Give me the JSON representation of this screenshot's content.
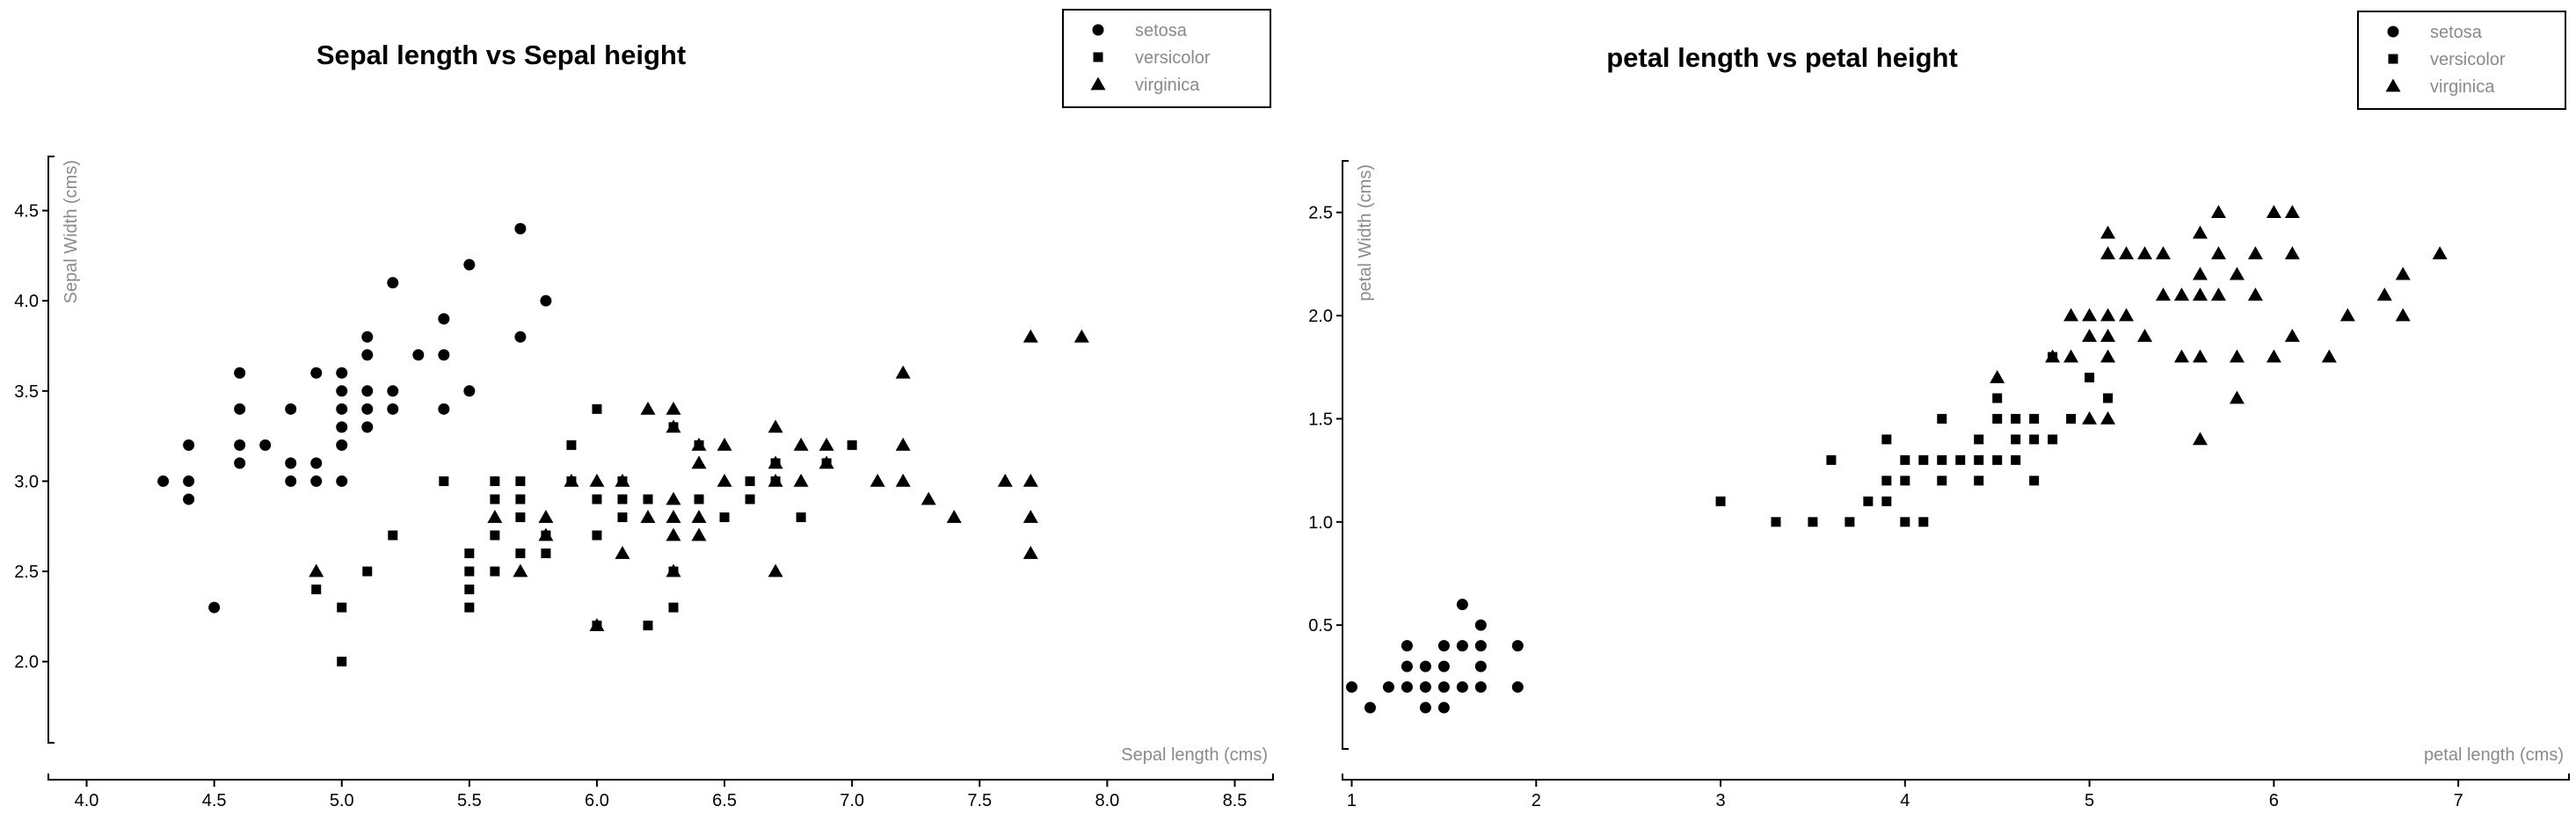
{
  "chart_data": [
    {
      "type": "scatter",
      "title": "Sepal length vs Sepal height",
      "xlabel": "Sepal length (cms)",
      "ylabel": "Sepal Width (cms)",
      "xlim": [
        3.85,
        8.65
      ],
      "ylim": [
        1.55,
        4.8
      ],
      "xticks": [
        4.0,
        4.5,
        5.0,
        5.5,
        6.0,
        6.5,
        7.0,
        7.5,
        8.0,
        8.5
      ],
      "yticks": [
        2.0,
        2.5,
        3.0,
        3.5,
        4.0,
        4.5
      ],
      "grid": false,
      "legend_position": "top-right",
      "series": [
        {
          "name": "setosa",
          "marker": "circle",
          "points": [
            [
              4.3,
              3.0
            ],
            [
              4.4,
              2.9
            ],
            [
              4.4,
              3.0
            ],
            [
              4.4,
              3.2
            ],
            [
              4.5,
              2.3
            ],
            [
              4.6,
              3.1
            ],
            [
              4.6,
              3.2
            ],
            [
              4.6,
              3.4
            ],
            [
              4.6,
              3.6
            ],
            [
              4.7,
              3.2
            ],
            [
              4.8,
              3.0
            ],
            [
              4.8,
              3.1
            ],
            [
              4.8,
              3.4
            ],
            [
              4.9,
              3.0
            ],
            [
              4.9,
              3.1
            ],
            [
              4.9,
              3.6
            ],
            [
              5.0,
              3.0
            ],
            [
              5.0,
              3.2
            ],
            [
              5.0,
              3.3
            ],
            [
              5.0,
              3.4
            ],
            [
              5.0,
              3.5
            ],
            [
              5.0,
              3.6
            ],
            [
              5.1,
              3.3
            ],
            [
              5.1,
              3.4
            ],
            [
              5.1,
              3.5
            ],
            [
              5.1,
              3.7
            ],
            [
              5.1,
              3.8
            ],
            [
              5.2,
              3.4
            ],
            [
              5.2,
              3.5
            ],
            [
              5.2,
              4.1
            ],
            [
              5.3,
              3.7
            ],
            [
              5.4,
              3.4
            ],
            [
              5.4,
              3.7
            ],
            [
              5.4,
              3.9
            ],
            [
              5.5,
              3.5
            ],
            [
              5.5,
              4.2
            ],
            [
              5.7,
              3.8
            ],
            [
              5.7,
              4.4
            ],
            [
              5.8,
              4.0
            ]
          ]
        },
        {
          "name": "versicolor",
          "marker": "square",
          "points": [
            [
              4.9,
              2.4
            ],
            [
              5.0,
              2.0
            ],
            [
              5.0,
              2.3
            ],
            [
              5.1,
              2.5
            ],
            [
              5.2,
              2.7
            ],
            [
              5.4,
              3.0
            ],
            [
              5.5,
              2.3
            ],
            [
              5.5,
              2.4
            ],
            [
              5.5,
              2.5
            ],
            [
              5.5,
              2.6
            ],
            [
              5.6,
              2.5
            ],
            [
              5.6,
              2.7
            ],
            [
              5.6,
              2.9
            ],
            [
              5.6,
              3.0
            ],
            [
              5.7,
              2.6
            ],
            [
              5.7,
              2.8
            ],
            [
              5.7,
              2.9
            ],
            [
              5.7,
              3.0
            ],
            [
              5.8,
              2.6
            ],
            [
              5.8,
              2.7
            ],
            [
              5.9,
              3.0
            ],
            [
              5.9,
              3.2
            ],
            [
              6.0,
              2.2
            ],
            [
              6.0,
              2.7
            ],
            [
              6.0,
              2.9
            ],
            [
              6.0,
              3.4
            ],
            [
              6.1,
              2.8
            ],
            [
              6.1,
              2.9
            ],
            [
              6.1,
              3.0
            ],
            [
              6.2,
              2.2
            ],
            [
              6.2,
              2.9
            ],
            [
              6.3,
              2.3
            ],
            [
              6.3,
              2.5
            ],
            [
              6.3,
              3.3
            ],
            [
              6.4,
              2.9
            ],
            [
              6.4,
              3.2
            ],
            [
              6.5,
              2.8
            ],
            [
              6.6,
              2.9
            ],
            [
              6.6,
              3.0
            ],
            [
              6.7,
              3.0
            ],
            [
              6.7,
              3.1
            ],
            [
              6.8,
              2.8
            ],
            [
              6.9,
              3.1
            ],
            [
              7.0,
              3.2
            ]
          ]
        },
        {
          "name": "virginica",
          "marker": "triangle",
          "points": [
            [
              4.9,
              2.5
            ],
            [
              5.6,
              2.8
            ],
            [
              5.7,
              2.5
            ],
            [
              5.8,
              2.7
            ],
            [
              5.8,
              2.8
            ],
            [
              5.9,
              3.0
            ],
            [
              6.0,
              2.2
            ],
            [
              6.0,
              3.0
            ],
            [
              6.1,
              2.6
            ],
            [
              6.1,
              3.0
            ],
            [
              6.2,
              2.8
            ],
            [
              6.2,
              3.4
            ],
            [
              6.3,
              2.5
            ],
            [
              6.3,
              2.7
            ],
            [
              6.3,
              2.8
            ],
            [
              6.3,
              2.9
            ],
            [
              6.3,
              3.3
            ],
            [
              6.3,
              3.4
            ],
            [
              6.4,
              2.7
            ],
            [
              6.4,
              2.8
            ],
            [
              6.4,
              3.1
            ],
            [
              6.4,
              3.2
            ],
            [
              6.5,
              3.0
            ],
            [
              6.5,
              3.2
            ],
            [
              6.7,
              2.5
            ],
            [
              6.7,
              3.0
            ],
            [
              6.7,
              3.1
            ],
            [
              6.7,
              3.3
            ],
            [
              6.8,
              3.0
            ],
            [
              6.8,
              3.2
            ],
            [
              6.9,
              3.1
            ],
            [
              6.9,
              3.2
            ],
            [
              7.1,
              3.0
            ],
            [
              7.2,
              3.0
            ],
            [
              7.2,
              3.2
            ],
            [
              7.2,
              3.6
            ],
            [
              7.3,
              2.9
            ],
            [
              7.4,
              2.8
            ],
            [
              7.6,
              3.0
            ],
            [
              7.7,
              2.6
            ],
            [
              7.7,
              2.8
            ],
            [
              7.7,
              3.0
            ],
            [
              7.7,
              3.8
            ],
            [
              7.9,
              3.8
            ]
          ]
        }
      ]
    },
    {
      "type": "scatter",
      "title": "petal length vs petal height",
      "xlabel": "petal length (cms)",
      "ylabel": "petal Width (cms)",
      "xlim": [
        0.95,
        7.6
      ],
      "ylim": [
        -0.1,
        2.75
      ],
      "xticks": [
        1,
        2,
        3,
        4,
        5,
        6,
        7
      ],
      "yticks": [
        0.5,
        1.0,
        1.5,
        2.0,
        2.5
      ],
      "grid": false,
      "legend_position": "top-right",
      "series": [
        {
          "name": "setosa",
          "marker": "circle",
          "points": [
            [
              1.0,
              0.2
            ],
            [
              1.1,
              0.1
            ],
            [
              1.2,
              0.2
            ],
            [
              1.3,
              0.2
            ],
            [
              1.3,
              0.3
            ],
            [
              1.3,
              0.4
            ],
            [
              1.4,
              0.1
            ],
            [
              1.4,
              0.2
            ],
            [
              1.4,
              0.3
            ],
            [
              1.5,
              0.1
            ],
            [
              1.5,
              0.2
            ],
            [
              1.5,
              0.3
            ],
            [
              1.5,
              0.4
            ],
            [
              1.6,
              0.2
            ],
            [
              1.6,
              0.4
            ],
            [
              1.6,
              0.6
            ],
            [
              1.7,
              0.2
            ],
            [
              1.7,
              0.3
            ],
            [
              1.7,
              0.4
            ],
            [
              1.7,
              0.5
            ],
            [
              1.9,
              0.2
            ],
            [
              1.9,
              0.4
            ]
          ]
        },
        {
          "name": "versicolor",
          "marker": "square",
          "points": [
            [
              3.0,
              1.1
            ],
            [
              3.3,
              1.0
            ],
            [
              3.5,
              1.0
            ],
            [
              3.6,
              1.3
            ],
            [
              3.7,
              1.0
            ],
            [
              3.8,
              1.1
            ],
            [
              3.9,
              1.1
            ],
            [
              3.9,
              1.2
            ],
            [
              3.9,
              1.4
            ],
            [
              4.0,
              1.0
            ],
            [
              4.0,
              1.2
            ],
            [
              4.0,
              1.3
            ],
            [
              4.1,
              1.0
            ],
            [
              4.1,
              1.3
            ],
            [
              4.2,
              1.2
            ],
            [
              4.2,
              1.3
            ],
            [
              4.2,
              1.5
            ],
            [
              4.3,
              1.3
            ],
            [
              4.4,
              1.2
            ],
            [
              4.4,
              1.3
            ],
            [
              4.4,
              1.4
            ],
            [
              4.5,
              1.3
            ],
            [
              4.5,
              1.5
            ],
            [
              4.5,
              1.6
            ],
            [
              4.6,
              1.3
            ],
            [
              4.6,
              1.4
            ],
            [
              4.6,
              1.5
            ],
            [
              4.7,
              1.2
            ],
            [
              4.7,
              1.4
            ],
            [
              4.7,
              1.5
            ],
            [
              4.8,
              1.4
            ],
            [
              4.8,
              1.8
            ],
            [
              4.9,
              1.5
            ],
            [
              5.0,
              1.7
            ],
            [
              5.1,
              1.6
            ]
          ]
        },
        {
          "name": "virginica",
          "marker": "triangle",
          "points": [
            [
              4.5,
              1.7
            ],
            [
              4.8,
              1.8
            ],
            [
              4.9,
              1.8
            ],
            [
              4.9,
              2.0
            ],
            [
              5.0,
              1.5
            ],
            [
              5.0,
              1.9
            ],
            [
              5.0,
              2.0
            ],
            [
              5.1,
              1.5
            ],
            [
              5.1,
              1.8
            ],
            [
              5.1,
              1.9
            ],
            [
              5.1,
              2.0
            ],
            [
              5.1,
              2.3
            ],
            [
              5.1,
              2.4
            ],
            [
              5.2,
              2.0
            ],
            [
              5.2,
              2.3
            ],
            [
              5.3,
              1.9
            ],
            [
              5.3,
              2.3
            ],
            [
              5.4,
              2.1
            ],
            [
              5.4,
              2.3
            ],
            [
              5.5,
              1.8
            ],
            [
              5.5,
              2.1
            ],
            [
              5.6,
              1.4
            ],
            [
              5.6,
              1.8
            ],
            [
              5.6,
              2.1
            ],
            [
              5.6,
              2.2
            ],
            [
              5.6,
              2.4
            ],
            [
              5.7,
              2.1
            ],
            [
              5.7,
              2.3
            ],
            [
              5.7,
              2.5
            ],
            [
              5.8,
              1.6
            ],
            [
              5.8,
              1.8
            ],
            [
              5.8,
              2.2
            ],
            [
              5.9,
              2.1
            ],
            [
              5.9,
              2.3
            ],
            [
              6.0,
              1.8
            ],
            [
              6.0,
              2.5
            ],
            [
              6.1,
              1.9
            ],
            [
              6.1,
              2.3
            ],
            [
              6.1,
              2.5
            ],
            [
              6.3,
              1.8
            ],
            [
              6.4,
              2.0
            ],
            [
              6.6,
              2.1
            ],
            [
              6.7,
              2.0
            ],
            [
              6.7,
              2.2
            ],
            [
              6.9,
              2.3
            ]
          ]
        }
      ]
    }
  ]
}
